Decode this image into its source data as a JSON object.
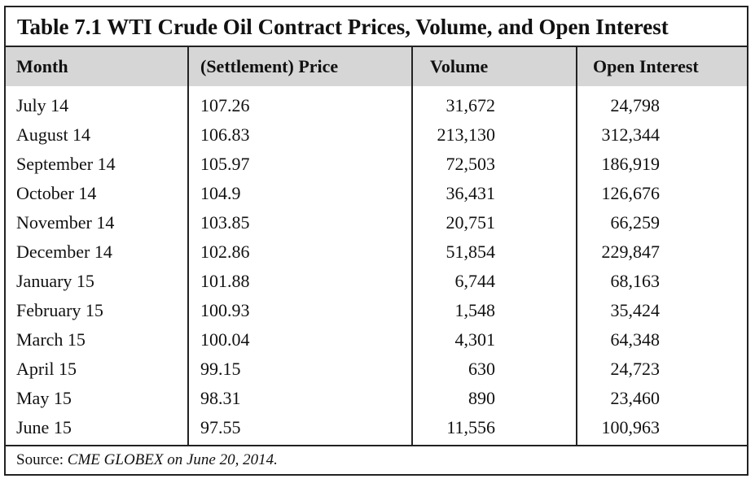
{
  "table": {
    "title": "Table 7.1  WTI Crude Oil Contract Prices, Volume, and Open Interest",
    "headers": {
      "month": "Month",
      "price": "(Settlement) Price",
      "volume": "Volume",
      "open_interest": "Open Interest"
    },
    "rows": [
      {
        "month": "July 14",
        "price": "107.26",
        "volume": "31,672",
        "open_interest": "24,798"
      },
      {
        "month": "August 14",
        "price": "106.83",
        "volume": "213,130",
        "open_interest": "312,344"
      },
      {
        "month": "September 14",
        "price": "105.97",
        "volume": "72,503",
        "open_interest": "186,919"
      },
      {
        "month": "October 14",
        "price": "104.9",
        "volume": "36,431",
        "open_interest": "126,676"
      },
      {
        "month": "November 14",
        "price": "103.85",
        "volume": "20,751",
        "open_interest": "66,259"
      },
      {
        "month": "December 14",
        "price": "102.86",
        "volume": "51,854",
        "open_interest": "229,847"
      },
      {
        "month": "January 15",
        "price": "101.88",
        "volume": "6,744",
        "open_interest": "68,163"
      },
      {
        "month": "February 15",
        "price": "100.93",
        "volume": "1,548",
        "open_interest": "35,424"
      },
      {
        "month": "March 15",
        "price": "100.04",
        "volume": "4,301",
        "open_interest": "64,348"
      },
      {
        "month": "April 15",
        "price": "99.15",
        "volume": "630",
        "open_interest": "24,723"
      },
      {
        "month": "May 15",
        "price": "98.31",
        "volume": "890",
        "open_interest": "23,460"
      },
      {
        "month": "June 15",
        "price": "97.55",
        "volume": "11,556",
        "open_interest": "100,963"
      }
    ],
    "source": {
      "label": "Source:",
      "text": "CME GLOBEX on June 20, 2014."
    }
  }
}
